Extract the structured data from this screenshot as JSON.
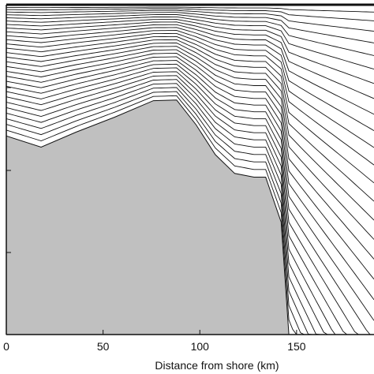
{
  "chart_data": {
    "type": "line",
    "title": "",
    "xlabel": "Distance from shore (km)",
    "ylabel": "",
    "xlim": [
      0,
      190
    ],
    "x_ticks": [
      0,
      50,
      100,
      150
    ],
    "x_tick_labels": [
      "0",
      "50",
      "100",
      "150"
    ],
    "grid": false,
    "legend": "none",
    "fill_color": "#c0c0c0",
    "line_color": "#111111",
    "bottom_profile": {
      "name": "",
      "x": [
        0,
        18,
        36,
        56,
        76,
        88,
        98,
        108,
        118,
        128,
        134,
        138,
        142,
        146,
        190
      ],
      "depth": [
        0.175,
        0.19,
        0.17,
        0.15,
        0.128,
        0.127,
        0.16,
        0.2,
        0.225,
        0.23,
        0.23,
        0.26,
        0.29,
        0.44,
        0.44
      ]
    },
    "isolines": {
      "count": 30,
      "x": [
        0,
        18,
        36,
        56,
        76,
        88,
        98,
        108,
        118,
        128,
        134,
        138,
        142,
        146,
        152,
        160,
        170,
        180,
        190
      ],
      "surface_depth": [
        0.002,
        0.002,
        0.002,
        0.002,
        0.002,
        0.002,
        0.002,
        0.002,
        0.002,
        0.002,
        0.002,
        0.002,
        0.002,
        0.002,
        0.002,
        0.002,
        0.002,
        0.002,
        0.002
      ],
      "shape": [
        0.0,
        0.0,
        0.0,
        0.0,
        0.0,
        0.0,
        0.0,
        0.0,
        0.0,
        0.0,
        0.0,
        0.0,
        0.0,
        0.0,
        0.004,
        0.008,
        0.012,
        0.016,
        0.02
      ]
    }
  }
}
